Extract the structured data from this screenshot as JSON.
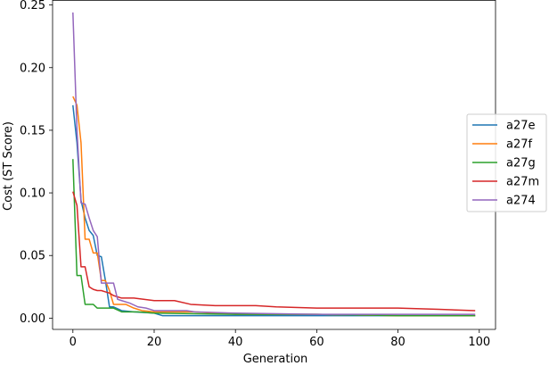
{
  "chart_data": {
    "type": "line",
    "title": "",
    "xlabel": "Generation",
    "ylabel": "Cost (ST Score)",
    "xlim": [
      -5,
      104
    ],
    "ylim": [
      -0.009,
      0.254
    ],
    "x_ticks": [
      0,
      20,
      40,
      60,
      80,
      100
    ],
    "y_ticks": [
      0.0,
      0.05,
      0.1,
      0.15,
      0.2,
      0.25
    ],
    "x_tick_labels": [
      "0",
      "20",
      "40",
      "60",
      "80",
      "100"
    ],
    "y_tick_labels": [
      "0.00",
      "0.05",
      "0.10",
      "0.15",
      "0.20",
      "0.25"
    ],
    "grid": false,
    "legend_position": "right",
    "series": [
      {
        "name": "a27e",
        "color": "#1f77b4",
        "x": [
          0,
          1,
          2,
          3,
          4,
          5,
          6,
          7,
          8,
          9,
          10,
          12,
          15,
          20,
          22,
          30,
          40,
          60,
          75,
          99
        ],
        "values": [
          0.17,
          0.14,
          0.094,
          0.08,
          0.07,
          0.066,
          0.05,
          0.049,
          0.03,
          0.009,
          0.009,
          0.006,
          0.005,
          0.004,
          0.002,
          0.002,
          0.002,
          0.002,
          0.002,
          0.002
        ]
      },
      {
        "name": "a27f",
        "color": "#ff7f0e",
        "x": [
          0,
          1,
          2,
          3,
          4,
          5,
          6,
          7,
          8,
          9,
          10,
          13,
          15,
          17,
          20,
          30,
          40,
          60,
          80,
          99
        ],
        "values": [
          0.177,
          0.17,
          0.14,
          0.063,
          0.063,
          0.052,
          0.052,
          0.03,
          0.03,
          0.022,
          0.011,
          0.011,
          0.008,
          0.006,
          0.005,
          0.005,
          0.003,
          0.003,
          0.002,
          0.002
        ]
      },
      {
        "name": "a27g",
        "color": "#2ca02c",
        "x": [
          0,
          1,
          2,
          3,
          4,
          5,
          6,
          7,
          8,
          10,
          12,
          14,
          16,
          20,
          40,
          60,
          80,
          99
        ],
        "values": [
          0.127,
          0.034,
          0.034,
          0.011,
          0.011,
          0.011,
          0.008,
          0.008,
          0.008,
          0.008,
          0.005,
          0.005,
          0.005,
          0.004,
          0.003,
          0.003,
          0.002,
          0.002
        ]
      },
      {
        "name": "a27m",
        "color": "#d62728",
        "x": [
          0,
          1,
          2,
          3,
          4,
          5,
          6,
          7,
          8,
          9,
          10,
          12,
          15,
          20,
          25,
          29,
          35,
          40,
          45,
          50,
          60,
          70,
          80,
          90,
          99
        ],
        "values": [
          0.101,
          0.09,
          0.041,
          0.041,
          0.025,
          0.023,
          0.022,
          0.022,
          0.021,
          0.02,
          0.018,
          0.016,
          0.016,
          0.014,
          0.014,
          0.011,
          0.01,
          0.01,
          0.01,
          0.009,
          0.008,
          0.008,
          0.008,
          0.007,
          0.006
        ]
      },
      {
        "name": "a274",
        "color": "#9467bd",
        "x": [
          0,
          1,
          2,
          3,
          4,
          5,
          6,
          7,
          8,
          9,
          10,
          11,
          12,
          14,
          16,
          18,
          20,
          28,
          30,
          40,
          60,
          80,
          99
        ],
        "values": [
          0.244,
          0.15,
          0.092,
          0.091,
          0.08,
          0.07,
          0.065,
          0.028,
          0.028,
          0.028,
          0.028,
          0.015,
          0.014,
          0.012,
          0.009,
          0.008,
          0.006,
          0.006,
          0.005,
          0.004,
          0.003,
          0.003,
          0.003
        ]
      }
    ]
  }
}
